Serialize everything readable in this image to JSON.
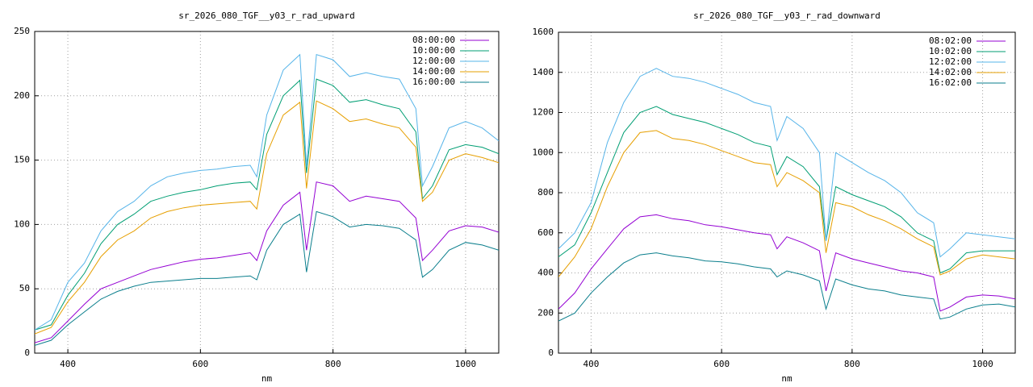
{
  "chart_data": [
    {
      "type": "line",
      "title": "sr_2026_080_TGF__y03_r_rad_upward",
      "x_label": "nm",
      "x": [
        350,
        375,
        400,
        425,
        450,
        475,
        500,
        525,
        550,
        575,
        600,
        625,
        650,
        675,
        685,
        700,
        725,
        750,
        760,
        775,
        800,
        825,
        850,
        875,
        900,
        925,
        935,
        950,
        975,
        1000,
        1025,
        1050
      ],
      "xlim": [
        350,
        1050
      ],
      "xticks": [
        400,
        600,
        800,
        1000
      ],
      "ylim": [
        0,
        250
      ],
      "yticks": [
        0,
        50,
        100,
        150,
        200,
        250
      ],
      "grid": true,
      "legend": "upper right",
      "series": [
        {
          "name": "08:00:00",
          "color": "#9400d3",
          "values": [
            8,
            12,
            25,
            38,
            50,
            55,
            60,
            65,
            68,
            71,
            73,
            74,
            76,
            78,
            72,
            95,
            115,
            125,
            80,
            133,
            130,
            118,
            122,
            120,
            118,
            105,
            72,
            80,
            95,
            99,
            98,
            94
          ]
        },
        {
          "name": "10:00:00",
          "color": "#009e73",
          "values": [
            18,
            22,
            45,
            62,
            85,
            100,
            108,
            118,
            122,
            125,
            127,
            130,
            132,
            133,
            127,
            170,
            200,
            212,
            140,
            213,
            208,
            195,
            197,
            193,
            190,
            172,
            120,
            130,
            158,
            162,
            160,
            155
          ]
        },
        {
          "name": "12:00:00",
          "color": "#56b4e9",
          "values": [
            18,
            26,
            55,
            70,
            95,
            110,
            118,
            130,
            137,
            140,
            142,
            143,
            145,
            146,
            137,
            185,
            220,
            232,
            145,
            232,
            228,
            215,
            218,
            215,
            213,
            190,
            130,
            145,
            175,
            180,
            175,
            165
          ]
        },
        {
          "name": "14:00:00",
          "color": "#e69f00",
          "values": [
            15,
            20,
            40,
            55,
            75,
            88,
            95,
            105,
            110,
            113,
            115,
            116,
            117,
            118,
            112,
            155,
            185,
            195,
            128,
            196,
            190,
            180,
            182,
            178,
            175,
            160,
            118,
            125,
            150,
            155,
            152,
            148
          ]
        },
        {
          "name": "16:00:00",
          "color": "#0a7e8c",
          "values": [
            6,
            10,
            22,
            32,
            42,
            48,
            52,
            55,
            56,
            57,
            58,
            58,
            59,
            60,
            57,
            80,
            100,
            108,
            63,
            110,
            106,
            98,
            100,
            99,
            97,
            88,
            59,
            65,
            80,
            86,
            84,
            80
          ]
        }
      ]
    },
    {
      "type": "line",
      "title": "sr_2026_080_TGF__y03_r_rad_downward",
      "x_label": "nm",
      "x": [
        350,
        375,
        400,
        425,
        450,
        475,
        500,
        525,
        550,
        575,
        600,
        625,
        650,
        675,
        685,
        700,
        725,
        750,
        760,
        775,
        800,
        825,
        850,
        875,
        900,
        925,
        935,
        950,
        975,
        1000,
        1025,
        1050
      ],
      "xlim": [
        350,
        1050
      ],
      "xticks": [
        400,
        600,
        800,
        1000
      ],
      "ylim": [
        0,
        1600
      ],
      "yticks": [
        0,
        200,
        400,
        600,
        800,
        1000,
        1200,
        1400,
        1600
      ],
      "grid": true,
      "legend": "upper right",
      "series": [
        {
          "name": "08:02:00",
          "color": "#9400d3",
          "values": [
            220,
            300,
            420,
            520,
            620,
            680,
            690,
            670,
            660,
            640,
            630,
            615,
            600,
            590,
            520,
            580,
            550,
            510,
            310,
            500,
            470,
            450,
            430,
            410,
            400,
            380,
            210,
            230,
            280,
            290,
            285,
            270
          ]
        },
        {
          "name": "10:02:00",
          "color": "#009e73",
          "values": [
            480,
            540,
            700,
            900,
            1100,
            1200,
            1230,
            1190,
            1170,
            1150,
            1120,
            1090,
            1050,
            1030,
            890,
            980,
            930,
            830,
            560,
            830,
            790,
            760,
            730,
            680,
            600,
            560,
            400,
            420,
            500,
            510,
            510,
            510
          ]
        },
        {
          "name": "12:02:00",
          "color": "#56b4e9",
          "values": [
            520,
            600,
            750,
            1050,
            1250,
            1380,
            1420,
            1380,
            1370,
            1350,
            1320,
            1290,
            1250,
            1230,
            1060,
            1180,
            1120,
            1000,
            560,
            1000,
            950,
            900,
            860,
            800,
            700,
            650,
            480,
            520,
            600,
            590,
            580,
            570
          ]
        },
        {
          "name": "14:02:00",
          "color": "#e69f00",
          "values": [
            380,
            480,
            620,
            830,
            1000,
            1100,
            1110,
            1070,
            1060,
            1040,
            1010,
            980,
            950,
            940,
            830,
            900,
            860,
            800,
            500,
            750,
            730,
            690,
            660,
            620,
            570,
            530,
            390,
            410,
            470,
            490,
            480,
            470
          ]
        },
        {
          "name": "16:02:00",
          "color": "#0a7e8c",
          "values": [
            160,
            200,
            300,
            380,
            450,
            490,
            500,
            485,
            475,
            460,
            455,
            445,
            430,
            420,
            380,
            410,
            390,
            360,
            220,
            370,
            340,
            320,
            310,
            290,
            280,
            270,
            170,
            180,
            220,
            240,
            245,
            230
          ]
        }
      ]
    }
  ]
}
